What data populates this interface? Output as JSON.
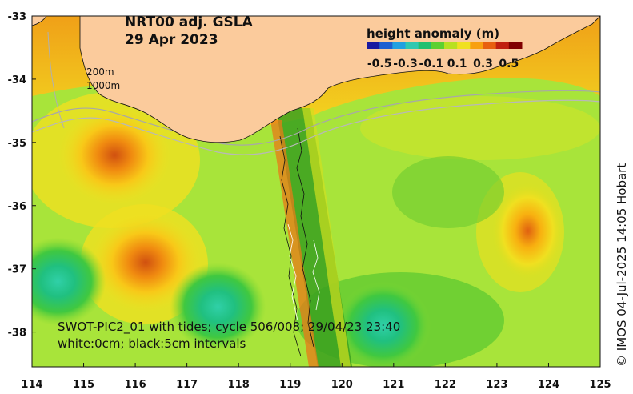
{
  "title": {
    "line1": "NRT00 adj. GSLA",
    "line2": "29 Apr 2023"
  },
  "isobaths": [
    "200m",
    "1000m"
  ],
  "colorbar": {
    "title": "height anomaly (m)",
    "ticks": [
      "-0.5",
      "-0.3",
      "-0.1",
      "0.1",
      "0.3",
      "0.5"
    ],
    "colors": [
      "#1a1aa0",
      "#1e5fd0",
      "#22a0e0",
      "#30c8b0",
      "#20c070",
      "#5cd030",
      "#b8e020",
      "#f0e020",
      "#f8a010",
      "#e86010",
      "#c02010",
      "#800000"
    ]
  },
  "annotation": {
    "line1": "SWOT-PIC2_01 with tides; cycle 506/008; 29/04/23 23:40",
    "line2": "white:0cm; black:5cm intervals"
  },
  "credit": "© IMOS 04-Jul-2025 14:05 Hobart",
  "axes": {
    "x_ticks": [
      "114",
      "115",
      "116",
      "117",
      "118",
      "119",
      "120",
      "121",
      "122",
      "123",
      "124",
      "125"
    ],
    "y_ticks": [
      "-33",
      "-34",
      "-35",
      "-36",
      "-37",
      "-38"
    ]
  },
  "palette": {
    "land": "#fbcb9c",
    "background": "#a8e43a",
    "swath": "#3aa020"
  },
  "anomaly_blobs": [
    {
      "name": "high-west-slope",
      "lon": 115.6,
      "lat": -35.2,
      "level": "high"
    },
    {
      "name": "high-southwest",
      "lon": 116.2,
      "lat": -36.9,
      "level": "high"
    },
    {
      "name": "high-east",
      "lon": 123.6,
      "lat": -36.4,
      "level": "mid"
    },
    {
      "name": "low-south-central",
      "lon": 117.6,
      "lat": -37.6,
      "level": "low"
    },
    {
      "name": "low-far-west",
      "lon": 114.5,
      "lat": -37.2,
      "level": "low"
    },
    {
      "name": "low-south-east",
      "lon": 120.8,
      "lat": -37.9,
      "level": "low"
    }
  ]
}
